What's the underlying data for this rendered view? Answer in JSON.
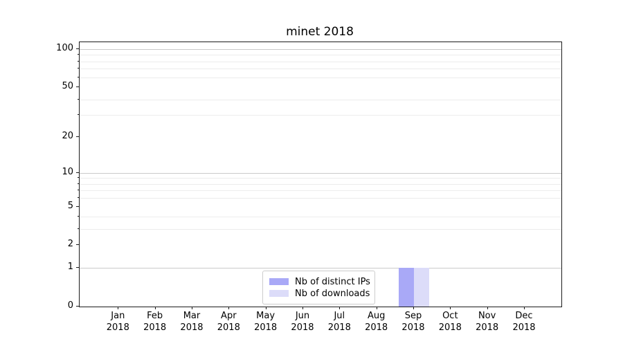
{
  "chart_data": {
    "type": "bar",
    "title": "minet 2018",
    "categories": [
      "Jan",
      "Feb",
      "Mar",
      "Apr",
      "May",
      "Jun",
      "Jul",
      "Aug",
      "Sep",
      "Oct",
      "Nov",
      "Dec"
    ],
    "category_year": "2018",
    "series": [
      {
        "name": "Nb of distinct IPs",
        "color": "#a9a9f7",
        "values": [
          0,
          0,
          0,
          0,
          0,
          0,
          0,
          0,
          1,
          0,
          0,
          0
        ]
      },
      {
        "name": "Nb of downloads",
        "color": "#dcdcf9",
        "values": [
          0,
          0,
          0,
          0,
          0,
          0,
          0,
          0,
          1,
          0,
          0,
          0
        ]
      }
    ],
    "y_axis": {
      "scale": "log1p",
      "tick_labels": [
        0,
        1,
        2,
        5,
        10,
        20,
        50,
        100
      ],
      "major_gridlines": [
        1,
        10,
        100
      ],
      "minor_gridlines": [
        3,
        4,
        6,
        7,
        8,
        9,
        30,
        40,
        60,
        70,
        80,
        90
      ],
      "ylim": [
        0,
        113
      ]
    },
    "x_axis": {
      "year_under_month": true
    },
    "legend": {
      "position": "lower center",
      "entries": [
        "Nb of distinct IPs",
        "Nb of downloads"
      ]
    },
    "grid": "horizontal",
    "colors": {
      "major_grid": "#c9c9c9",
      "minor_grid": "#ececec",
      "spine": "#1a1a1a",
      "text": "#000000",
      "background": "#ffffff"
    }
  }
}
